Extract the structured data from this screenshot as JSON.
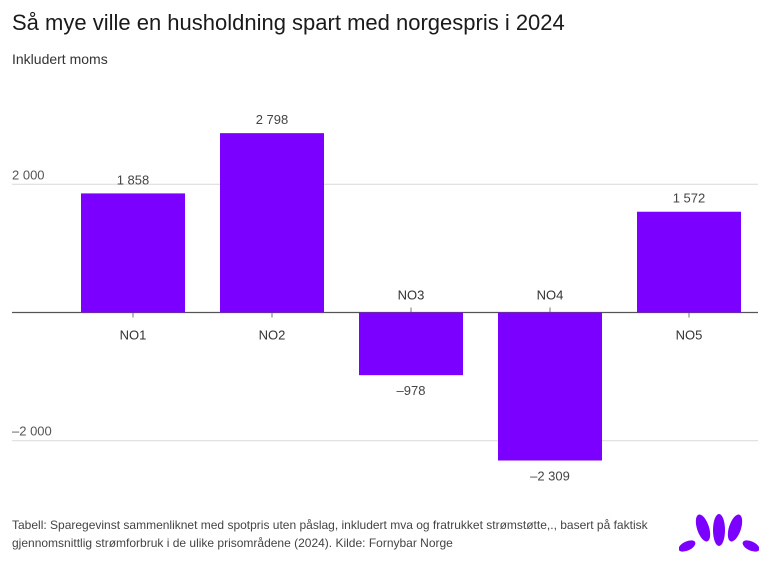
{
  "header": {
    "title": "Så mye ville en husholdning spart med norgespris i 2024",
    "subtitle": "Inkludert moms"
  },
  "chart_data": {
    "type": "bar",
    "title": "Så mye ville en husholdning spart med norgespris i 2024",
    "subtitle": "Inkludert moms",
    "categories": [
      "NO1",
      "NO2",
      "NO3",
      "NO4",
      "NO5"
    ],
    "values": [
      1858,
      2798,
      -978,
      -2309,
      1572
    ],
    "value_labels": [
      "1 858",
      "2 798",
      "–978",
      "–2 309",
      "1 572"
    ],
    "yticks": [
      2000,
      -2000
    ],
    "ytick_labels": [
      "2 000",
      "–2 000"
    ],
    "ylim": [
      -2500,
      3000
    ],
    "grid": true,
    "xlabel": "",
    "ylabel": "",
    "bar_color": "#7b00ff"
  },
  "footer": {
    "source": "Tabell: Sparegevinst sammenliknet med spotpris uten påslag, inkludert mva og fratrukket strømstøtte,., basert på faktisk gjennomsnittlig strømforbruk i de ulike prisområdene (2024). Kilde: Fornybar Norge"
  },
  "colors": {
    "bar": "#7b00ff",
    "grid": "#d9d9d9",
    "axis": "#555555",
    "logo": "#7b00ff"
  },
  "logo": {
    "icon": "flower-petals-logo-icon"
  }
}
